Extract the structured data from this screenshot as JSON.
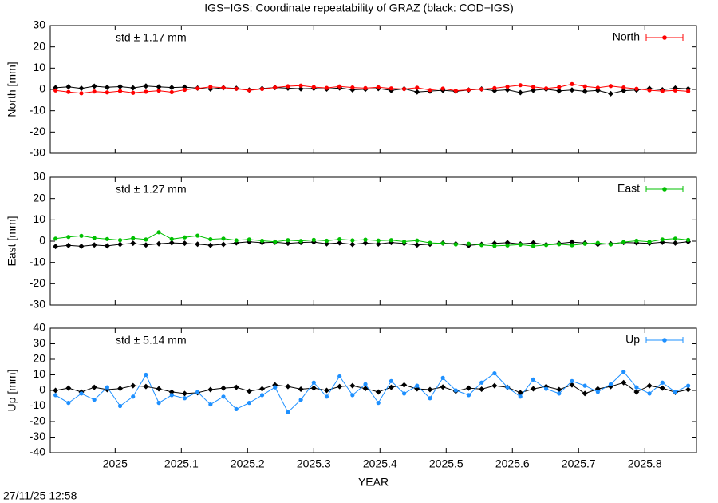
{
  "title": "IGS−IGS: Coordinate repeatability of GRAZ (black: COD−IGS)",
  "timestamp": "27/11/25 12:58",
  "chart_data": [
    {
      "type": "line",
      "ylabel": "North [mm]",
      "annotation": "std ± 1.17 mm",
      "legend": "top-right",
      "xlim": [
        2024.902,
        2025.878
      ],
      "xticks": [
        2025,
        2025.1,
        2025.2,
        2025.3,
        2025.4,
        2025.5,
        2025.6,
        2025.7,
        2025.8
      ],
      "ylim": [
        -30,
        30
      ],
      "yticks": [
        -30,
        -20,
        -10,
        0,
        10,
        20,
        30
      ],
      "x": [
        2024.91,
        2024.9295,
        2024.949,
        2024.9685,
        2024.988,
        2025.0075,
        2025.027,
        2025.0465,
        2025.066,
        2025.0855,
        2025.105,
        2025.1245,
        2025.144,
        2025.1635,
        2025.183,
        2025.2025,
        2025.222,
        2025.2415,
        2025.261,
        2025.2805,
        2025.3,
        2025.3195,
        2025.339,
        2025.3585,
        2025.378,
        2025.3975,
        2025.417,
        2025.4365,
        2025.456,
        2025.4755,
        2025.495,
        2025.5145,
        2025.534,
        2025.5535,
        2025.573,
        2025.5925,
        2025.612,
        2025.6315,
        2025.651,
        2025.6705,
        2025.69,
        2025.7095,
        2025.729,
        2025.7485,
        2025.768,
        2025.7875,
        2025.807,
        2025.8265,
        2025.846,
        2025.8655
      ],
      "series": [
        {
          "color": "#000000",
          "values": [
            0.8,
            1.2,
            0.5,
            1.5,
            1.0,
            1.3,
            0.7,
            1.6,
            1.2,
            0.9,
            1.1,
            0.6,
            0.2,
            0.8,
            0.5,
            -0.3,
            0.4,
            0.9,
            0.6,
            0.3,
            0.5,
            0.2,
            0.7,
            -0.2,
            0.1,
            0.4,
            -0.5,
            0.3,
            -1.2,
            -0.8,
            -0.4,
            -0.9,
            -0.3,
            0.2,
            -0.6,
            -0.2,
            -1.5,
            -0.4,
            0.1,
            -0.7,
            -0.3,
            -0.9,
            -0.5,
            -2.0,
            -0.6,
            -0.3,
            0.4,
            -0.2,
            0.6,
            0.3
          ]
        },
        {
          "name": "North",
          "color": "#ff0000",
          "values": [
            -0.5,
            -1.2,
            -1.8,
            -1.0,
            -1.4,
            -0.8,
            -1.6,
            -1.1,
            -0.6,
            -1.3,
            -0.2,
            0.5,
            1.2,
            0.8,
            0.3,
            -0.4,
            0.2,
            0.9,
            1.5,
            1.8,
            1.1,
            0.7,
            1.4,
            0.9,
            0.6,
            1.0,
            0.5,
            0.2,
            0.8,
            -0.3,
            0.4,
            -0.6,
            -0.2,
            0.1,
            0.6,
            1.3,
            2.0,
            1.2,
            0.5,
            1.1,
            2.5,
            1.4,
            0.8,
            1.6,
            0.9,
            0.3,
            -0.4,
            -0.8,
            -0.5,
            -0.9
          ]
        }
      ]
    },
    {
      "type": "line",
      "ylabel": "East [mm]",
      "annotation": "std ± 1.27 mm",
      "legend": "top-right",
      "xlim": [
        2024.902,
        2025.878
      ],
      "xticks": [
        2025,
        2025.1,
        2025.2,
        2025.3,
        2025.4,
        2025.5,
        2025.6,
        2025.7,
        2025.8
      ],
      "ylim": [
        -30,
        30
      ],
      "yticks": [
        -30,
        -20,
        -10,
        0,
        10,
        20,
        30
      ],
      "x": [
        2024.91,
        2024.9295,
        2024.949,
        2024.9685,
        2024.988,
        2025.0075,
        2025.027,
        2025.0465,
        2025.066,
        2025.0855,
        2025.105,
        2025.1245,
        2025.144,
        2025.1635,
        2025.183,
        2025.2025,
        2025.222,
        2025.2415,
        2025.261,
        2025.2805,
        2025.3,
        2025.3195,
        2025.339,
        2025.3585,
        2025.378,
        2025.3975,
        2025.417,
        2025.4365,
        2025.456,
        2025.4755,
        2025.495,
        2025.5145,
        2025.534,
        2025.5535,
        2025.573,
        2025.5925,
        2025.612,
        2025.6315,
        2025.651,
        2025.6705,
        2025.69,
        2025.7095,
        2025.729,
        2025.7485,
        2025.768,
        2025.7875,
        2025.807,
        2025.8265,
        2025.846,
        2025.8655
      ],
      "series": [
        {
          "color": "#000000",
          "values": [
            -2.5,
            -2.0,
            -2.4,
            -1.8,
            -2.2,
            -1.5,
            -1.0,
            -1.8,
            -1.2,
            -0.8,
            -1.0,
            -1.4,
            -1.9,
            -1.5,
            -0.8,
            -0.3,
            -0.7,
            -0.5,
            -1.0,
            -0.6,
            -0.4,
            -1.2,
            -0.8,
            -1.5,
            -0.9,
            -1.3,
            -0.6,
            -1.1,
            -1.8,
            -1.4,
            -0.9,
            -1.2,
            -2.0,
            -1.5,
            -1.0,
            -0.7,
            -1.3,
            -0.8,
            -1.6,
            -1.1,
            -0.4,
            -0.9,
            -1.5,
            -1.2,
            -0.6,
            -0.8,
            -1.0,
            -0.5,
            -0.9,
            -0.3
          ]
        },
        {
          "name": "East",
          "color": "#00c000",
          "values": [
            1.2,
            2.0,
            2.5,
            1.5,
            1.0,
            0.5,
            1.4,
            0.8,
            4.2,
            1.0,
            1.8,
            2.6,
            0.9,
            1.2,
            0.4,
            0.8,
            0.2,
            -0.3,
            0.5,
            0.1,
            0.6,
            0.2,
            0.9,
            0.4,
            0.7,
            0.3,
            0.5,
            -0.2,
            0.3,
            -0.8,
            -1.0,
            -1.5,
            -1.2,
            -1.8,
            -2.2,
            -2.0,
            -1.6,
            -2.3,
            -1.8,
            -1.4,
            -1.9,
            -1.2,
            -0.8,
            -1.5,
            -0.4,
            0.2,
            -0.3,
            0.8,
            1.2,
            0.6
          ]
        }
      ]
    },
    {
      "type": "line",
      "ylabel": "Up [mm]",
      "xlabel": "YEAR",
      "annotation": "std ± 5.14 mm",
      "legend": "top-right",
      "xlim": [
        2024.902,
        2025.878
      ],
      "xticks": [
        2025,
        2025.1,
        2025.2,
        2025.3,
        2025.4,
        2025.5,
        2025.6,
        2025.7,
        2025.8
      ],
      "ylim": [
        -40,
        40
      ],
      "yticks": [
        -40,
        -30,
        -20,
        -10,
        0,
        10,
        20,
        30,
        40
      ],
      "x": [
        2024.91,
        2024.9295,
        2024.949,
        2024.9685,
        2024.988,
        2025.0075,
        2025.027,
        2025.0465,
        2025.066,
        2025.0855,
        2025.105,
        2025.1245,
        2025.144,
        2025.1635,
        2025.183,
        2025.2025,
        2025.222,
        2025.2415,
        2025.261,
        2025.2805,
        2025.3,
        2025.3195,
        2025.339,
        2025.3585,
        2025.378,
        2025.3975,
        2025.417,
        2025.4365,
        2025.456,
        2025.4755,
        2025.495,
        2025.5145,
        2025.534,
        2025.5535,
        2025.573,
        2025.5925,
        2025.612,
        2025.6315,
        2025.651,
        2025.6705,
        2025.69,
        2025.7095,
        2025.729,
        2025.7485,
        2025.768,
        2025.7875,
        2025.807,
        2025.8265,
        2025.846,
        2025.8655
      ],
      "series": [
        {
          "color": "#000000",
          "values": [
            0,
            1.5,
            -1.0,
            2.0,
            0.5,
            1.2,
            3.0,
            2.5,
            1.0,
            -1.0,
            -2.0,
            -1.5,
            0.5,
            1.5,
            2.0,
            -0.5,
            1.0,
            3.5,
            2.5,
            0.8,
            1.5,
            0.0,
            2.5,
            3.0,
            1.2,
            -1.0,
            2.0,
            3.5,
            1.0,
            0.5,
            2.2,
            -0.5,
            1.5,
            0.8,
            3.0,
            2.0,
            -1.5,
            1.0,
            2.5,
            0.5,
            3.5,
            -2.0,
            1.0,
            2.5,
            5.0,
            -1.0,
            3.0,
            1.5,
            -1.2,
            0.5
          ]
        },
        {
          "name": "Up",
          "color": "#1e90ff",
          "values": [
            -3,
            -8,
            -2,
            -6,
            2,
            -10,
            -4,
            10,
            -8,
            -3,
            -5,
            -1,
            -9,
            -4,
            -12,
            -8,
            -3,
            2,
            -14,
            -6,
            5,
            -4,
            9,
            -3,
            4,
            -8,
            6,
            -2,
            3,
            -5,
            8,
            0,
            -3,
            5,
            11,
            2,
            -4,
            7,
            1,
            -2,
            6,
            3,
            -1,
            4,
            12,
            2,
            -2,
            5,
            -1,
            3
          ]
        }
      ]
    }
  ]
}
